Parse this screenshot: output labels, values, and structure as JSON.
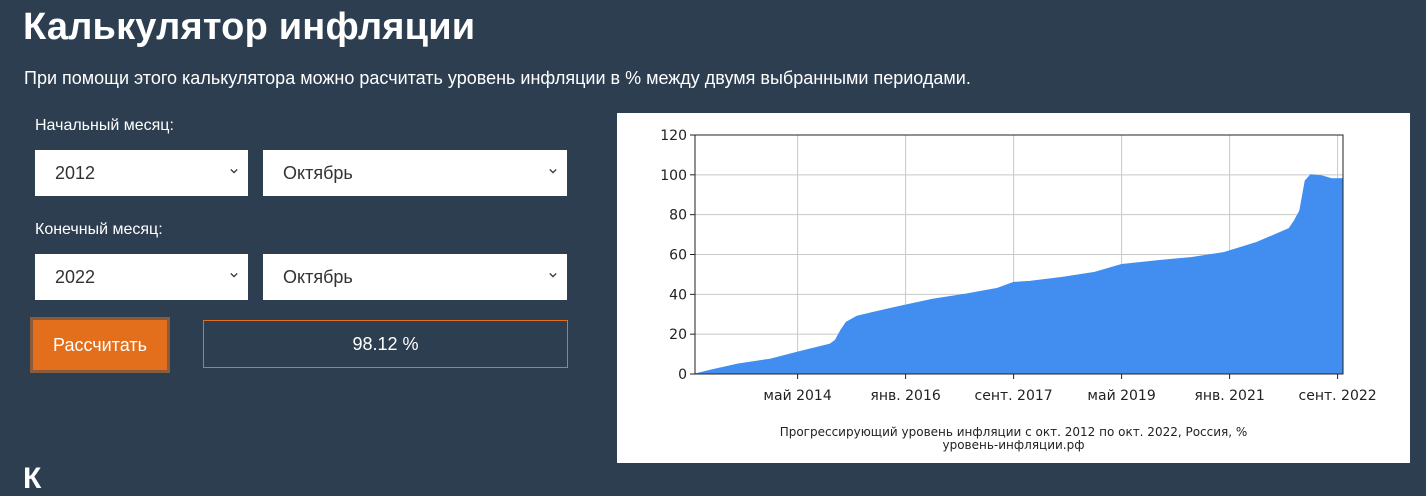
{
  "header": {
    "title": "Калькулятор инфляции",
    "subtitle": "При помощи этого калькулятора можно расчитать уровень инфляции в % между двумя выбранными периодами."
  },
  "form": {
    "start_label": "Начальный месяц:",
    "start_year": "2012",
    "start_month": "Октябрь",
    "end_label": "Конечный месяц:",
    "end_year": "2022",
    "end_month": "Октябрь",
    "calculate_label": "Рассчитать",
    "result": "98.12 %"
  },
  "next_heading": "К",
  "colors": {
    "background": "#2c3e50",
    "accent": "#e36f1c",
    "fill": "#418ef0"
  },
  "chart_data": {
    "type": "area",
    "caption_line1": "Прогрессирующий уровень инфляции с окт. 2012 по окт. 2022, Россия, %",
    "caption_line2": "уровень-инфляции.рф",
    "x_tick_labels": [
      "май 2014",
      "янв. 2016",
      "сент. 2017",
      "май 2019",
      "янв. 2021",
      "сент. 2022"
    ],
    "x_tick_dates": [
      "2014-05",
      "2016-01",
      "2017-09",
      "2019-05",
      "2021-01",
      "2022-09"
    ],
    "y_tick_labels": [
      "0",
      "20",
      "40",
      "60",
      "80",
      "100",
      "120"
    ],
    "ylim": [
      0,
      120
    ],
    "xlim": [
      "2012-10",
      "2022-10"
    ],
    "grid": true,
    "points": [
      [
        "2012-10",
        0
      ],
      [
        "2013-01",
        2
      ],
      [
        "2013-06",
        5
      ],
      [
        "2013-12",
        7.5
      ],
      [
        "2014-05",
        11
      ],
      [
        "2014-08",
        13
      ],
      [
        "2014-11",
        15
      ],
      [
        "2014-12",
        17
      ],
      [
        "2015-01",
        22
      ],
      [
        "2015-02",
        26
      ],
      [
        "2015-04",
        29
      ],
      [
        "2015-07",
        31
      ],
      [
        "2015-12",
        34
      ],
      [
        "2016-06",
        37.5
      ],
      [
        "2016-12",
        40
      ],
      [
        "2017-06",
        43
      ],
      [
        "2017-09",
        46
      ],
      [
        "2017-12",
        46.5
      ],
      [
        "2018-06",
        48.5
      ],
      [
        "2018-12",
        51
      ],
      [
        "2019-05",
        55
      ],
      [
        "2019-12",
        57
      ],
      [
        "2020-06",
        58.5
      ],
      [
        "2020-12",
        61
      ],
      [
        "2021-06",
        66
      ],
      [
        "2021-12",
        73
      ],
      [
        "2022-01",
        77
      ],
      [
        "2022-02",
        82
      ],
      [
        "2022-03",
        97
      ],
      [
        "2022-04",
        100
      ],
      [
        "2022-06",
        99.5
      ],
      [
        "2022-08",
        98
      ],
      [
        "2022-10",
        98.12
      ]
    ]
  }
}
